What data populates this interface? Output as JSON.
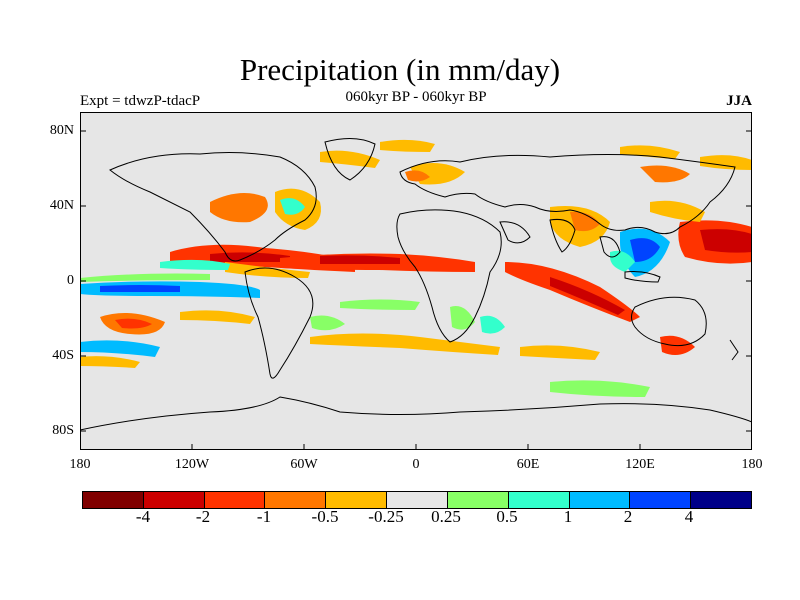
{
  "title": "Precipitation (in mm/day)",
  "subtitle_left": "Expt = tdwzP-tdacP",
  "subtitle_center": "060kyr BP - 060kyr BP",
  "subtitle_right": "JJA",
  "lat_ticks": [
    "80N",
    "40N",
    "0",
    "40S",
    "80S"
  ],
  "lon_ticks": [
    "180",
    "120W",
    "60W",
    "0",
    "60E",
    "120E",
    "180"
  ],
  "colorbar": {
    "colors": [
      "#800000",
      "#cc0000",
      "#ff3300",
      "#ff7700",
      "#ffbb00",
      "#e6e6e6",
      "#88ff66",
      "#33ffcc",
      "#00bbff",
      "#0044ff",
      "#000088"
    ],
    "labels": [
      "-4",
      "-2",
      "-1",
      "-0.5",
      "-0.25",
      "0.25",
      "0.5",
      "1",
      "2",
      "4"
    ]
  },
  "map_data": {
    "background_color": "#e6e6e6",
    "anomaly_regions": [
      {
        "region": "east-pacific-itcz",
        "category": "-1",
        "color": "#ff3300"
      },
      {
        "region": "west-pacific-north",
        "category": "-1",
        "color": "#ff3300"
      },
      {
        "region": "indian-ocean-south-equatorial",
        "category": "-1",
        "color": "#ff3300"
      },
      {
        "region": "atlantic-itcz",
        "category": "-1",
        "color": "#ff3300"
      },
      {
        "region": "south-asia-maritime",
        "category": "1",
        "color": "#33ffcc"
      },
      {
        "region": "east-pacific-equatorial",
        "category": "2",
        "color": "#00bbff"
      },
      {
        "region": "southern-ocean",
        "category": "0.25",
        "color": "#88ff66"
      }
    ]
  }
}
